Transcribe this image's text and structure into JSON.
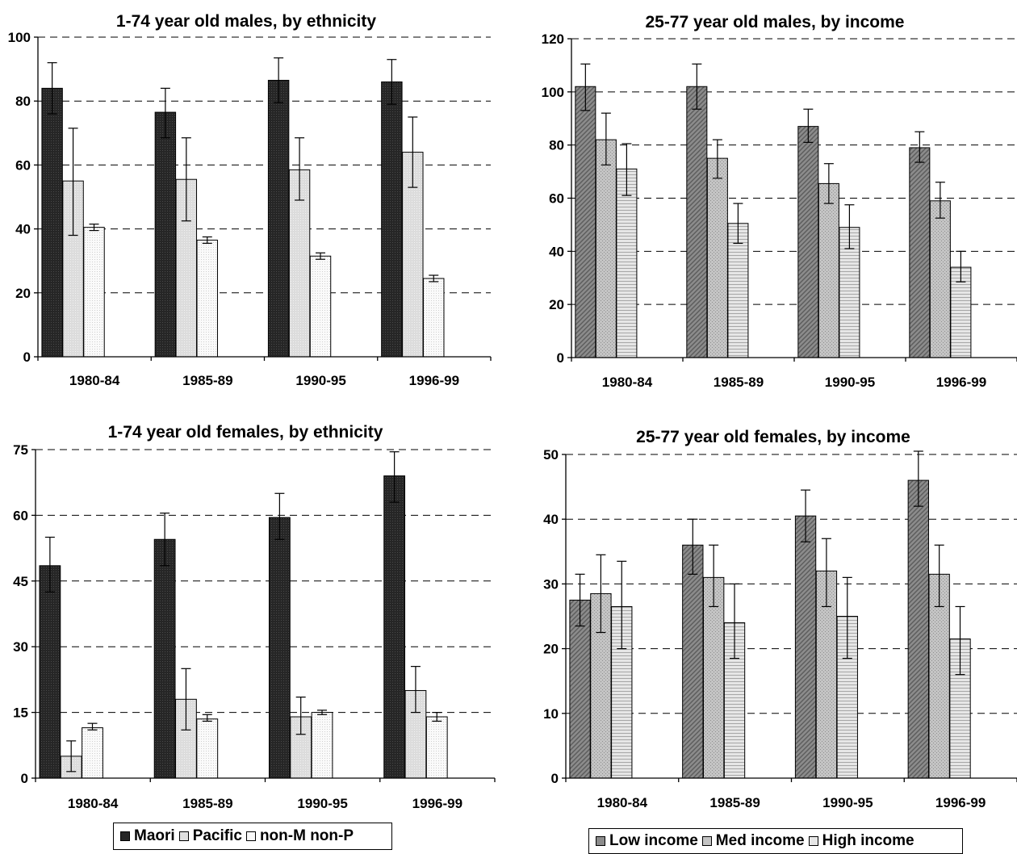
{
  "chart_data": [
    {
      "type": "bar",
      "title": "1-74 year old males, by ethnicity",
      "categories": [
        "1980-84",
        "1985-89",
        "1990-95",
        "1996-99"
      ],
      "ylim": [
        0,
        100
      ],
      "yticks": [
        "0",
        "20",
        "40",
        "60",
        "80",
        "100"
      ],
      "grid": true,
      "series": [
        {
          "name": "Maori",
          "values": [
            84,
            76.5,
            86.5,
            86
          ],
          "err_low": [
            76,
            68.5,
            79.5,
            79
          ],
          "err_high": [
            92,
            84,
            93.5,
            93
          ]
        },
        {
          "name": "Pacific",
          "values": [
            55,
            55.5,
            58.5,
            64
          ],
          "err_low": [
            38,
            42.5,
            49,
            53
          ],
          "err_high": [
            71.5,
            68.5,
            68.5,
            75
          ]
        },
        {
          "name": "non-M non-P",
          "values": [
            40.5,
            36.5,
            31.5,
            24.5
          ],
          "err_low": [
            39.5,
            35.5,
            30.5,
            23.5
          ],
          "err_high": [
            41.5,
            37.5,
            32.5,
            25.5
          ]
        }
      ]
    },
    {
      "type": "bar",
      "title": "25-77 year old males, by income",
      "categories": [
        "1980-84",
        "1985-89",
        "1990-95",
        "1996-99"
      ],
      "ylim": [
        0,
        120
      ],
      "yticks": [
        "0",
        "20",
        "40",
        "60",
        "80",
        "100",
        "120"
      ],
      "grid": true,
      "series": [
        {
          "name": "Low income",
          "values": [
            102,
            102,
            87,
            79
          ],
          "err_low": [
            93,
            93.5,
            81,
            73.5
          ],
          "err_high": [
            110.5,
            110.5,
            93.5,
            85
          ]
        },
        {
          "name": "Med income",
          "values": [
            82,
            75,
            65.5,
            59
          ],
          "err_low": [
            72.5,
            67.5,
            58,
            52.5
          ],
          "err_high": [
            92,
            82,
            73,
            66
          ]
        },
        {
          "name": "High income",
          "values": [
            71,
            50.5,
            49,
            34
          ],
          "err_low": [
            61,
            43,
            41,
            28.5
          ],
          "err_high": [
            80.5,
            58,
            57.5,
            40
          ]
        }
      ]
    },
    {
      "type": "bar",
      "title": "1-74 year old females, by ethnicity",
      "categories": [
        "1980-84",
        "1985-89",
        "1990-95",
        "1996-99"
      ],
      "ylim": [
        0,
        75
      ],
      "yticks": [
        "0",
        "15",
        "30",
        "45",
        "60",
        "75"
      ],
      "grid": true,
      "series": [
        {
          "name": "Maori",
          "values": [
            48.5,
            54.5,
            59.5,
            69
          ],
          "err_low": [
            42.5,
            48.5,
            54.5,
            63
          ],
          "err_high": [
            55,
            60.5,
            65,
            74.5
          ]
        },
        {
          "name": "Pacific",
          "values": [
            5,
            18,
            14,
            20
          ],
          "err_low": [
            1.5,
            11,
            10,
            15
          ],
          "err_high": [
            8.5,
            25,
            18.5,
            25.5
          ]
        },
        {
          "name": "non-M non-P",
          "values": [
            11.5,
            13.5,
            15,
            14
          ],
          "err_low": [
            11,
            13,
            14.5,
            13
          ],
          "err_high": [
            12.5,
            14.5,
            15.5,
            15
          ]
        }
      ]
    },
    {
      "type": "bar",
      "title": "25-77 year old females, by income",
      "categories": [
        "1980-84",
        "1985-89",
        "1990-95",
        "1996-99"
      ],
      "ylim": [
        0,
        50
      ],
      "yticks": [
        "0",
        "10",
        "20",
        "30",
        "40",
        "50"
      ],
      "grid": true,
      "series": [
        {
          "name": "Low income",
          "values": [
            27.5,
            36,
            40.5,
            46
          ],
          "err_low": [
            23.5,
            31.5,
            36.5,
            42
          ],
          "err_high": [
            31.5,
            40,
            44.5,
            50.5
          ]
        },
        {
          "name": "Med income",
          "values": [
            28.5,
            31,
            32,
            31.5
          ],
          "err_low": [
            22.5,
            26.5,
            26.5,
            26.5
          ],
          "err_high": [
            34.5,
            36,
            37,
            36
          ]
        },
        {
          "name": "High income",
          "values": [
            26.5,
            24,
            25,
            21.5
          ],
          "err_low": [
            20,
            18.5,
            18.5,
            16
          ],
          "err_high": [
            33.5,
            30,
            31,
            26.5
          ]
        }
      ]
    }
  ],
  "legends": {
    "ethnicity": {
      "items": [
        "Maori",
        "Pacific",
        "non-M non-P"
      ],
      "colors": [
        "#262626",
        "#e0e0e0",
        "#fafafa"
      ]
    },
    "income": {
      "items": [
        "Low income",
        "Med income",
        "High income"
      ],
      "colors": [
        "#8c8c8c",
        "#c4c4c4",
        "#e6e6e6"
      ]
    }
  }
}
